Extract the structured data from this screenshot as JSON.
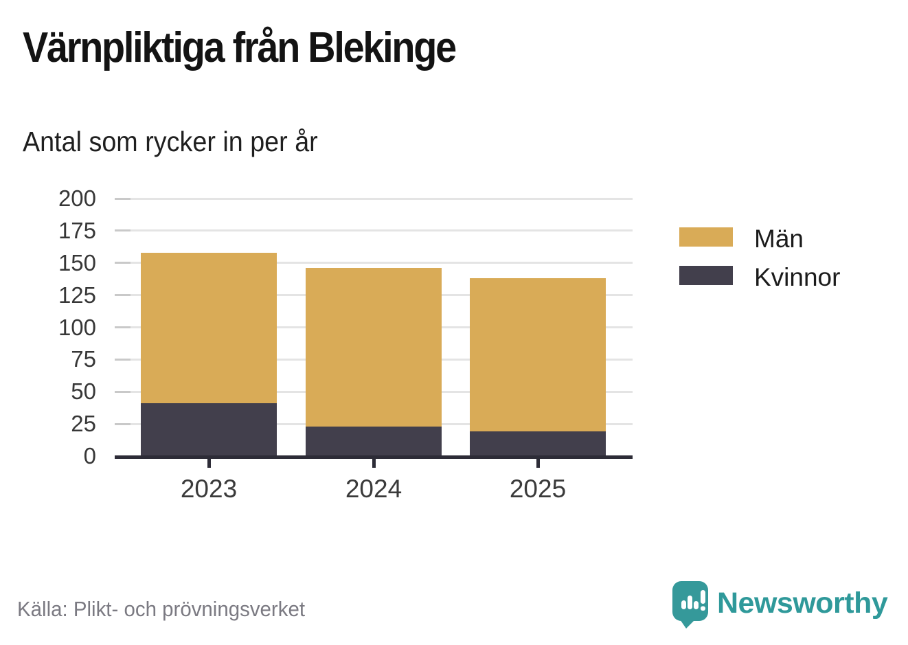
{
  "header": {
    "title": "Värnpliktiga från Blekinge",
    "subtitle": "Antal som rycker in per år"
  },
  "chart_data": {
    "type": "bar",
    "stacked": true,
    "title": "Värnpliktiga från Blekinge",
    "subtitle": "Antal som rycker in per år",
    "categories": [
      "2023",
      "2024",
      "2025"
    ],
    "series": [
      {
        "name": "Män",
        "color": "#d9ab57",
        "values": [
          117,
          123,
          119
        ]
      },
      {
        "name": "Kvinnor",
        "color": "#423f4c",
        "values": [
          41,
          23,
          19
        ]
      }
    ],
    "stack_order_bottom_to_top": [
      "Kvinnor",
      "Män"
    ],
    "totals": [
      158,
      146,
      138
    ],
    "xlabel": "",
    "ylabel": "",
    "ylim": [
      0,
      200
    ],
    "yticks": [
      0,
      25,
      50,
      75,
      100,
      125,
      150,
      175,
      200
    ],
    "grid": "horizontal",
    "legend_position": "right"
  },
  "legend": {
    "items": [
      {
        "label": "Män",
        "color": "#d9ab57"
      },
      {
        "label": "Kvinnor",
        "color": "#423f4c"
      }
    ]
  },
  "footer": {
    "source": "Källa: Plikt- och prövningsverket",
    "brand_name": "Newsworthy",
    "logo_icon": "newsworthy-speech-bubble-chart-icon"
  },
  "colors": {
    "men": "#d9ab57",
    "women": "#423f4c",
    "brand_teal": "#2f999a",
    "gridline": "#e4e4e4",
    "tick": "#c9c9c9",
    "axis": "#2d2c37",
    "title_text": "#131313",
    "axis_text": "#373737",
    "source_text": "#7b7a82"
  }
}
